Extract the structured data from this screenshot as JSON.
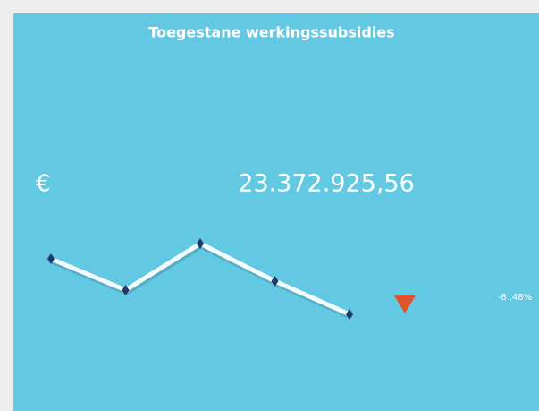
{
  "chart_data": {
    "type": "line",
    "title": "Toegestane werkingssubsidies",
    "currency": "€",
    "kpi": "23.372.925,56",
    "change": "-8 ,48%",
    "values": [
      111,
      76,
      128,
      86,
      49
    ],
    "color": "#f4fbfd",
    "marker_color": "#1d3b66",
    "indicator_color": "#e0532c"
  }
}
